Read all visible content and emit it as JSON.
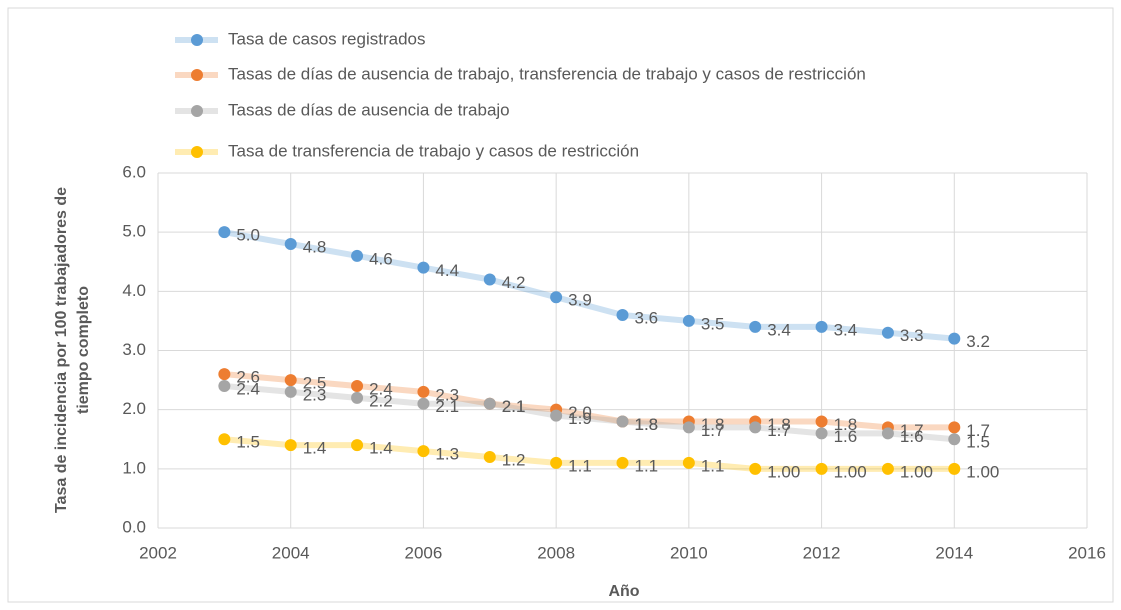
{
  "chart_data": {
    "type": "line",
    "xlabel": "Año",
    "ylabel": [
      "Tasa de incidencia por 100 trabajadores de",
      "tiempo completo"
    ],
    "x": [
      2003,
      2004,
      2005,
      2006,
      2007,
      2008,
      2009,
      2010,
      2011,
      2012,
      2013,
      2014
    ],
    "series": [
      {
        "name": "Tasa de casos registrados",
        "color": "#5b9bd5",
        "values": [
          5.0,
          4.8,
          4.6,
          4.4,
          4.2,
          3.9,
          3.6,
          3.5,
          3.4,
          3.4,
          3.3,
          3.2
        ],
        "value_labels": [
          "5.0",
          "4.8",
          "4.6",
          "4.4",
          "4.2",
          "3.9",
          "3.6",
          "3.5",
          "3.4",
          "3.4",
          "3.3",
          "3.2"
        ]
      },
      {
        "name": "Tasas de días de ausencia de trabajo, transferencia de trabajo y casos de restricción",
        "color": "#ed7d31",
        "values": [
          2.6,
          2.5,
          2.4,
          2.3,
          2.1,
          2.0,
          1.8,
          1.8,
          1.8,
          1.8,
          1.7,
          1.7
        ],
        "value_labels": [
          "2.6",
          "2.5",
          "2.4",
          "2.3",
          "2.1",
          "2.0",
          "1.8",
          "1.8",
          "1.8",
          "1.8",
          "1.7",
          "1.7"
        ]
      },
      {
        "name": "Tasas de días de ausencia de trabajo",
        "color": "#a5a5a5",
        "values": [
          2.4,
          2.3,
          2.2,
          2.1,
          2.1,
          1.9,
          1.8,
          1.7,
          1.7,
          1.6,
          1.6,
          1.5
        ],
        "value_labels": [
          "2.4",
          "2.3",
          "2.2",
          "2.1",
          "2.1",
          "1.9",
          "1.8",
          "1.7",
          "1.7",
          "1.6",
          "1.6",
          "1.5"
        ]
      },
      {
        "name": "Tasa de transferencia de trabajo y casos de restricción",
        "color": "#ffc000",
        "values": [
          1.5,
          1.4,
          1.4,
          1.3,
          1.2,
          1.1,
          1.1,
          1.1,
          1.0,
          1.0,
          1.0,
          1.0
        ],
        "value_labels": [
          "1.5",
          "1.4",
          "1.4",
          "1.3",
          "1.2",
          "1.1",
          "1.1",
          "1.1",
          "1.00",
          "1.00",
          "1.00",
          "1.00"
        ]
      }
    ],
    "xlim": [
      2002,
      2016
    ],
    "xticks": [
      2002,
      2004,
      2006,
      2008,
      2010,
      2012,
      2014,
      2016
    ],
    "ylim": [
      0,
      6
    ],
    "yticks": [
      {
        "value": 0,
        "label": "0.0"
      },
      {
        "value": 1,
        "label": "1.0"
      },
      {
        "value": 2,
        "label": "2.0"
      },
      {
        "value": 3,
        "label": "3.0"
      },
      {
        "value": 4,
        "label": "4.0"
      },
      {
        "value": 5,
        "label": "5.0"
      },
      {
        "value": 6,
        "label": "6.0"
      }
    ],
    "grid": true,
    "legend": "top"
  }
}
